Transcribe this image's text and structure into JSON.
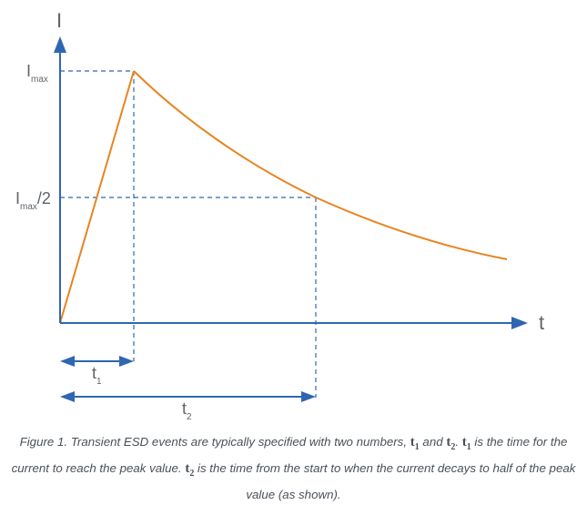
{
  "diagram": {
    "y_axis_label": "I",
    "x_axis_label": "t",
    "imax_label": {
      "base": "I",
      "sub": "max",
      "suffix": ""
    },
    "half_label": {
      "base": "I",
      "sub": "max",
      "suffix": "/2"
    },
    "t1_label": {
      "base": "t",
      "sub": "1"
    },
    "t2_label": {
      "base": "t",
      "sub": "2"
    },
    "colors": {
      "axis": "#2f66b3",
      "curve": "#e8841f",
      "dashed": "#2f66b3",
      "text": "#5f6369"
    }
  },
  "caption": {
    "p1": "Figure 1. Transient ESD events are typically specified with two numbers, ",
    "m1": "t",
    "m1_sub": "1",
    "p2": " and ",
    "m2": "t",
    "m2_sub": "2",
    "p3": ". ",
    "m3": "t",
    "m3_sub": "1",
    "p4": " is the time for the current to reach the peak value. ",
    "m4": "t",
    "m4_sub": "2",
    "p5": " is the time from the start to when the current decays to half of the peak value (as shown)."
  }
}
